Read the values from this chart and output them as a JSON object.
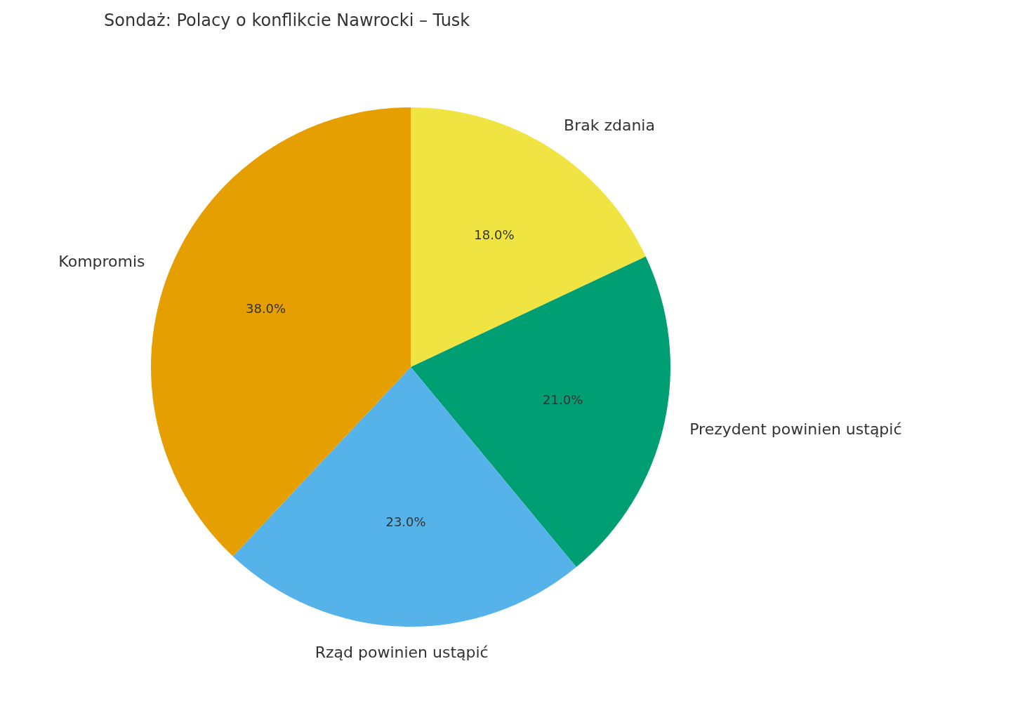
{
  "chart_data": {
    "type": "pie",
    "title": "Sondaż: Polacy o konflikcie Nawrocki – Tusk",
    "categories": [
      "Kompromis",
      "Rząd powinien ustąpić",
      "Prezydent powinien ustąpić",
      "Brak zdania"
    ],
    "values": [
      38,
      23,
      21,
      18
    ],
    "colors": [
      "#e69f00",
      "#56b3e9",
      "#009e73",
      "#f0e442"
    ],
    "value_labels": [
      "38.0%",
      "23.0%",
      "21.0%",
      "18.0%"
    ],
    "legend": false
  }
}
